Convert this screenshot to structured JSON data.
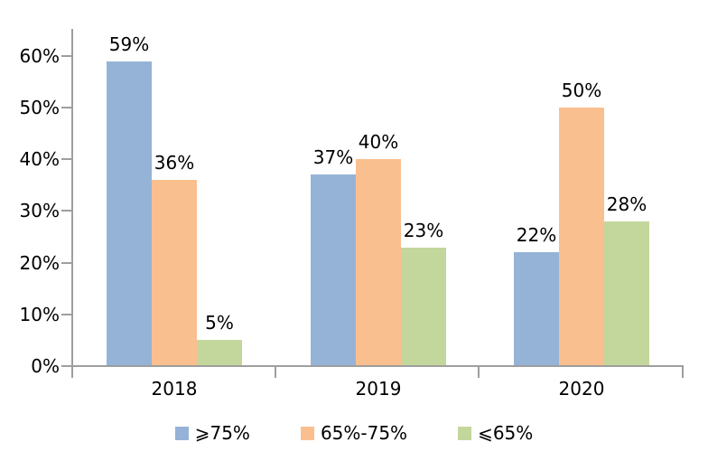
{
  "chart_data": {
    "type": "bar",
    "title": "",
    "xlabel": "",
    "ylabel": "",
    "categories": [
      "2018",
      "2019",
      "2020"
    ],
    "series": [
      {
        "name": "⩾75%",
        "color": "#95b3d7",
        "values": [
          59,
          37,
          22
        ]
      },
      {
        "name": "65%-75%",
        "color": "#fabf8f",
        "values": [
          36,
          40,
          50
        ]
      },
      {
        "name": "⩽65%",
        "color": "#c3d69b",
        "values": [
          5,
          23,
          28
        ]
      }
    ],
    "value_suffix": "%",
    "ylim": [
      0,
      60
    ],
    "ytick_step": 10,
    "yticks": [
      "0%",
      "10%",
      "20%",
      "30%",
      "40%",
      "50%",
      "60%"
    ],
    "grid": false,
    "legend_position": "bottom",
    "axis_color": "#9e9e9e",
    "text_color": "#000000",
    "background_color": "#ffffff"
  }
}
